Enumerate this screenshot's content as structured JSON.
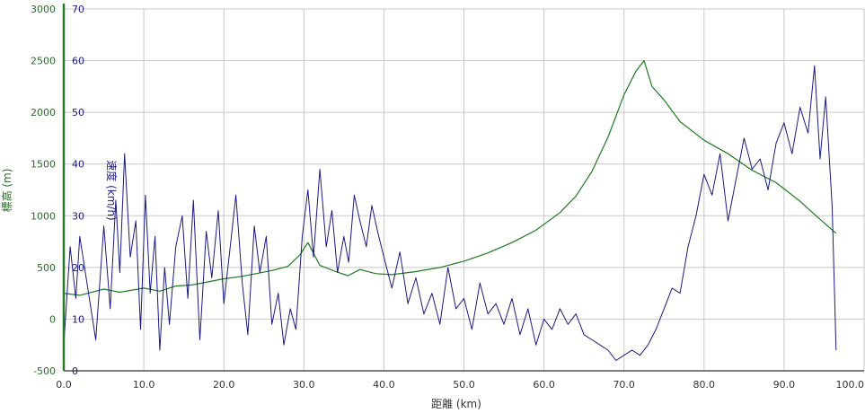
{
  "chart_data": {
    "type": "line",
    "xlabel": "距離 (km)",
    "ylabel_left": "標高 (m)",
    "ylabel_right": "速度 (km/h)",
    "xlim": [
      0,
      100
    ],
    "ylim_elevation": [
      -500,
      3000
    ],
    "ylim_speed": [
      0,
      70
    ],
    "x_ticks": [
      "0.0",
      "10.0",
      "20.0",
      "30.0",
      "40.0",
      "50.0",
      "60.0",
      "70.0",
      "80.0",
      "90.0",
      "100.0"
    ],
    "y_ticks_elevation": [
      "-500",
      "0",
      "500",
      "1000",
      "1500",
      "2000",
      "2500",
      "3000"
    ],
    "y_ticks_speed": [
      "0",
      "10",
      "20",
      "30",
      "40",
      "50",
      "60",
      "70"
    ],
    "grid": true,
    "colors": {
      "elevation": "#1e7a1e",
      "speed": "#1a1a80",
      "grid": "#c8c8c8",
      "axis_elev": "#2a7a2a",
      "axis_speed": "#1a1a80"
    },
    "series": [
      {
        "axis": "elevation",
        "x": [
          0,
          2,
          5,
          7,
          10,
          12,
          14,
          16,
          18,
          20,
          22,
          24,
          26,
          28,
          29.5,
          30.5,
          32,
          34,
          35.5,
          37,
          39,
          41,
          44,
          47,
          50,
          53,
          56,
          59,
          62,
          64,
          66,
          68,
          70,
          71.5,
          72.5,
          73.5,
          75,
          77,
          80,
          83,
          86,
          89,
          92,
          94,
          96.5
        ],
        "y": [
          250,
          230,
          290,
          260,
          300,
          270,
          320,
          330,
          360,
          390,
          410,
          440,
          470,
          510,
          620,
          740,
          520,
          460,
          420,
          480,
          440,
          430,
          460,
          500,
          560,
          640,
          740,
          860,
          1030,
          1190,
          1430,
          1760,
          2170,
          2400,
          2500,
          2250,
          2120,
          1910,
          1730,
          1600,
          1440,
          1320,
          1140,
          1000,
          830
        ]
      },
      {
        "axis": "speed",
        "x": [
          0,
          0.8,
          1.5,
          2,
          3,
          4,
          5,
          5.8,
          6.5,
          7,
          7.6,
          8.3,
          9,
          9.6,
          10.2,
          10.8,
          11.4,
          12,
          12.6,
          13.2,
          14,
          14.8,
          15.5,
          16.2,
          17,
          17.8,
          18.5,
          19.3,
          20,
          20.8,
          21.5,
          22.3,
          23,
          23.8,
          24.5,
          25.3,
          26,
          26.8,
          27.5,
          28.3,
          29,
          29.8,
          30.5,
          31.2,
          32,
          32.8,
          33.5,
          34.2,
          35,
          35.6,
          36.3,
          37,
          37.8,
          38.5,
          39.2,
          40,
          41,
          42,
          43,
          44,
          45,
          46,
          47,
          48,
          49,
          50,
          51,
          52,
          53,
          54,
          55,
          56,
          57,
          58,
          59,
          60,
          61,
          62,
          63,
          64,
          65,
          66,
          67,
          68,
          69,
          70,
          71,
          72,
          73,
          74,
          75,
          76,
          77,
          78,
          79,
          80,
          81,
          82,
          83,
          84,
          85,
          86,
          87,
          88,
          89,
          90,
          91,
          92,
          93,
          93.8,
          94.5,
          95.2,
          96,
          96.5
        ],
        "y": [
          5,
          24,
          14,
          26,
          16,
          6,
          28,
          12,
          33,
          19,
          42,
          22,
          29,
          8,
          34,
          15,
          26,
          4,
          20,
          9,
          24,
          30,
          14,
          33,
          6,
          27,
          18,
          31,
          13,
          24,
          34,
          17,
          7,
          28,
          19,
          26,
          9,
          15,
          5,
          12,
          8,
          26,
          35,
          22,
          39,
          24,
          31,
          19,
          26,
          21,
          34,
          29,
          24,
          32,
          27,
          22,
          16,
          23,
          13,
          18,
          11,
          15,
          9,
          20,
          12,
          14,
          8,
          17,
          11,
          13,
          9,
          14,
          7,
          12,
          5,
          10,
          8,
          12,
          9,
          11,
          7,
          6,
          5,
          4,
          2,
          3,
          4,
          3,
          5,
          8,
          12,
          16,
          15,
          24,
          30,
          38,
          34,
          42,
          29,
          37,
          45,
          39,
          41,
          35,
          44,
          48,
          42,
          51,
          46,
          59,
          41,
          53,
          32,
          4
        ]
      }
    ]
  }
}
